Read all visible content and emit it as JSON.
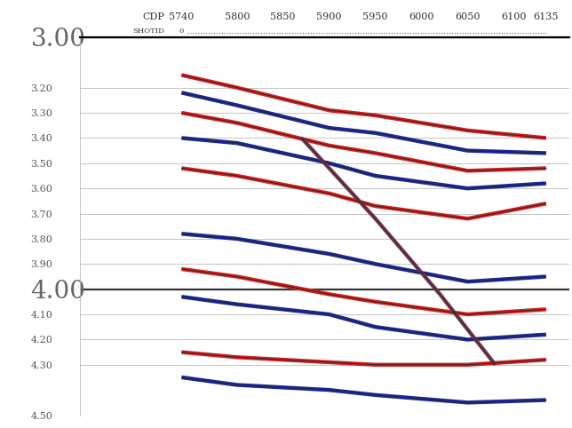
{
  "chart_data": {
    "type": "seismic_section",
    "x_label": "CDP",
    "header": {
      "label": "SHOTID",
      "value": 0
    },
    "series": [
      {
        "color": "#d41f1f",
        "x": [
          5740,
          5800,
          5900,
          5950,
          6050,
          6135
        ],
        "values": [
          3.15,
          3.2,
          3.29,
          3.31,
          3.37,
          3.4
        ]
      },
      {
        "color": "#1c2a9c",
        "x": [
          5740,
          5800,
          5900,
          5950,
          6050,
          6135
        ],
        "values": [
          3.22,
          3.27,
          3.36,
          3.38,
          3.45,
          3.46
        ]
      },
      {
        "color": "#d41f1f",
        "x": [
          5740,
          5800,
          5900,
          5950,
          6050,
          6135
        ],
        "values": [
          3.3,
          3.34,
          3.43,
          3.46,
          3.53,
          3.52
        ]
      },
      {
        "color": "#1c2a9c",
        "x": [
          5740,
          5800,
          5900,
          5950,
          6050,
          6135
        ],
        "values": [
          3.4,
          3.42,
          3.5,
          3.55,
          3.6,
          3.58
        ]
      },
      {
        "color": "#d41f1f",
        "x": [
          5740,
          5800,
          5900,
          5950,
          6050,
          6135
        ],
        "values": [
          3.52,
          3.55,
          3.62,
          3.67,
          3.72,
          3.66
        ]
      },
      {
        "color": "#1c2a9c",
        "x": [
          5740,
          5800,
          5900,
          5950,
          6050,
          6135
        ],
        "values": [
          3.78,
          3.8,
          3.86,
          3.9,
          3.97,
          3.95
        ]
      },
      {
        "color": "#d41f1f",
        "x": [
          5740,
          5800,
          5900,
          5950,
          6050,
          6135
        ],
        "values": [
          3.92,
          3.95,
          4.02,
          4.05,
          4.1,
          4.08
        ]
      },
      {
        "color": "#1c2a9c",
        "x": [
          5740,
          5800,
          5900,
          5950,
          6050,
          6135
        ],
        "values": [
          4.03,
          4.06,
          4.1,
          4.15,
          4.2,
          4.18
        ]
      },
      {
        "color": "#d41f1f",
        "x": [
          5740,
          5800,
          5900,
          5950,
          6050,
          6135
        ],
        "values": [
          4.25,
          4.27,
          4.29,
          4.3,
          4.3,
          4.28
        ]
      },
      {
        "color": "#1c2a9c",
        "x": [
          5740,
          5800,
          5900,
          5950,
          6050,
          6135
        ],
        "values": [
          4.35,
          4.38,
          4.4,
          4.42,
          4.45,
          4.44
        ]
      },
      {
        "color": "#7a3b55",
        "x": [
          5870,
          5950,
          6020,
          6080
        ],
        "values": [
          3.4,
          3.72,
          4.02,
          4.3
        ]
      }
    ],
    "xlim": [
      5630,
      6160
    ],
    "xticks": [
      5740,
      5800,
      5850,
      5900,
      5950,
      6000,
      6050,
      6100,
      6135
    ],
    "ylim": [
      4.5,
      3.0
    ],
    "yticks": [
      {
        "value": 3.0,
        "label": "3.00"
      },
      {
        "value": 3.2,
        "label": "3.20"
      },
      {
        "value": 3.3,
        "label": "3.30"
      },
      {
        "value": 3.4,
        "label": "3.40"
      },
      {
        "value": 3.5,
        "label": "3.50"
      },
      {
        "value": 3.6,
        "label": "3.60"
      },
      {
        "value": 3.7,
        "label": "3.70"
      },
      {
        "value": 3.8,
        "label": "3.80"
      },
      {
        "value": 3.9,
        "label": "3.90"
      },
      {
        "value": 4.0,
        "label": "4.00"
      },
      {
        "value": 4.1,
        "label": "4.10"
      },
      {
        "value": 4.2,
        "label": "4.20"
      },
      {
        "value": 4.3,
        "label": "4.30"
      },
      {
        "value": 4.5,
        "label": "4.50"
      }
    ],
    "grid": true
  }
}
